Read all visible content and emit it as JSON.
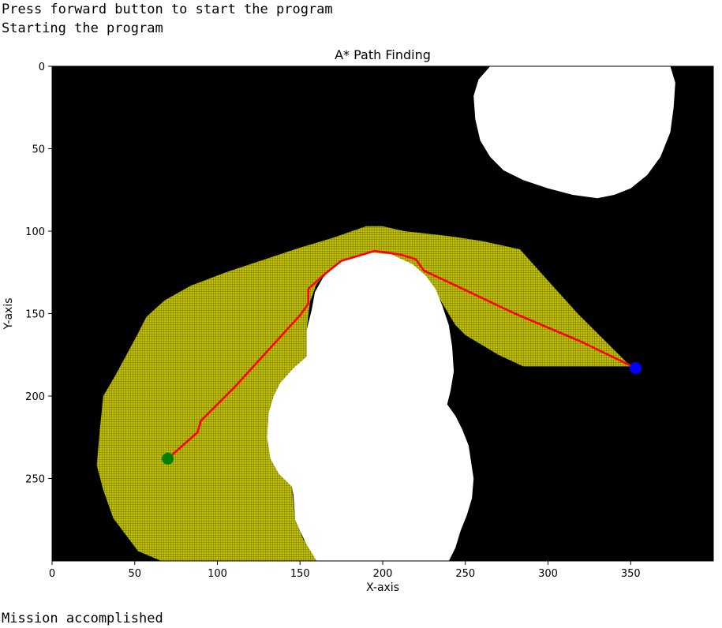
{
  "console": {
    "line1": "Press forward button to start the program",
    "line2": "Starting the program",
    "line3": "Mission accomplished"
  },
  "chart_data": {
    "type": "image-plot",
    "title": "A* Path Finding",
    "xlabel": "X-axis",
    "ylabel": "Y-axis",
    "xlim": [
      0,
      400
    ],
    "ylim": [
      300,
      0
    ],
    "xticks": [
      0,
      50,
      100,
      150,
      200,
      250,
      300,
      350
    ],
    "yticks": [
      0,
      50,
      100,
      150,
      200,
      250
    ],
    "background_color": "#000000",
    "obstacle_color": "#ffffff",
    "explored_color": "#c2c200",
    "path_color": "#ff0000",
    "start_color": "#008000",
    "goal_color": "#0000ff",
    "obstacles": [
      [
        [
          265,
          0
        ],
        [
          374,
          0
        ],
        [
          377,
          10
        ],
        [
          376,
          25
        ],
        [
          374,
          40
        ],
        [
          368,
          55
        ],
        [
          360,
          66
        ],
        [
          350,
          74
        ],
        [
          340,
          78
        ],
        [
          330,
          80
        ],
        [
          315,
          78
        ],
        [
          300,
          74
        ],
        [
          285,
          69
        ],
        [
          273,
          63
        ],
        [
          265,
          55
        ],
        [
          259,
          45
        ],
        [
          256,
          32
        ],
        [
          255,
          18
        ],
        [
          258,
          8
        ]
      ],
      [
        [
          193,
          113
        ],
        [
          205,
          114
        ],
        [
          218,
          120
        ],
        [
          226,
          127
        ],
        [
          232,
          135
        ],
        [
          236,
          145
        ],
        [
          240,
          157
        ],
        [
          242,
          170
        ],
        [
          243,
          185
        ],
        [
          241,
          197
        ],
        [
          239,
          205
        ],
        [
          244,
          212
        ],
        [
          248,
          220
        ],
        [
          252,
          230
        ],
        [
          255,
          250
        ],
        [
          254,
          262
        ],
        [
          251,
          272
        ],
        [
          247,
          282
        ],
        [
          244,
          292
        ],
        [
          240,
          300
        ],
        [
          160,
          300
        ],
        [
          154,
          290
        ],
        [
          150,
          282
        ],
        [
          147,
          275
        ],
        [
          146,
          260
        ],
        [
          145,
          255
        ],
        [
          137,
          247
        ],
        [
          132,
          238
        ],
        [
          130,
          225
        ],
        [
          131,
          210
        ],
        [
          134,
          200
        ],
        [
          138,
          192
        ],
        [
          146,
          183
        ],
        [
          154,
          176
        ],
        [
          154,
          160
        ],
        [
          157,
          148
        ],
        [
          159,
          137
        ],
        [
          164,
          128
        ],
        [
          171,
          121
        ],
        [
          180,
          116
        ]
      ]
    ],
    "explored": [
      [
        [
          66,
          300
        ],
        [
          52,
          294
        ],
        [
          37,
          274
        ],
        [
          31,
          257
        ],
        [
          27,
          242
        ],
        [
          29,
          219
        ],
        [
          31,
          200
        ],
        [
          38,
          188
        ],
        [
          45,
          175
        ],
        [
          52,
          162
        ],
        [
          57,
          152
        ],
        [
          68,
          142
        ],
        [
          84,
          133
        ],
        [
          105,
          125
        ],
        [
          126,
          118
        ],
        [
          150,
          110
        ],
        [
          170,
          104
        ],
        [
          190,
          97
        ],
        [
          200,
          97
        ],
        [
          213,
          100
        ],
        [
          240,
          103
        ],
        [
          260,
          106
        ],
        [
          283,
          111
        ],
        [
          300,
          130
        ],
        [
          318,
          150
        ],
        [
          334,
          166
        ],
        [
          350,
          182
        ],
        [
          285,
          182
        ],
        [
          270,
          175
        ],
        [
          250,
          163
        ],
        [
          244,
          157
        ],
        [
          232,
          137
        ],
        [
          220,
          122
        ],
        [
          206,
          115
        ],
        [
          193,
          113
        ],
        [
          180,
          116
        ],
        [
          168,
          123
        ],
        [
          160,
          132
        ],
        [
          156,
          143
        ],
        [
          154,
          160
        ],
        [
          154,
          176
        ],
        [
          146,
          183
        ],
        [
          138,
          192
        ],
        [
          134,
          200
        ],
        [
          131,
          210
        ],
        [
          130,
          225
        ],
        [
          132,
          238
        ],
        [
          137,
          247
        ],
        [
          145,
          255
        ],
        [
          147,
          275
        ],
        [
          152,
          287
        ],
        [
          157,
          293
        ],
        [
          160,
          300
        ]
      ]
    ],
    "path": [
      [
        70,
        238
      ],
      [
        88,
        222
      ],
      [
        90,
        215
      ],
      [
        110,
        195
      ],
      [
        130,
        173
      ],
      [
        150,
        151
      ],
      [
        155,
        144
      ],
      [
        155,
        135
      ],
      [
        165,
        126
      ],
      [
        175,
        118
      ],
      [
        185,
        115
      ],
      [
        195,
        112
      ],
      [
        210,
        114
      ],
      [
        220,
        117
      ],
      [
        225,
        124
      ],
      [
        240,
        131
      ],
      [
        280,
        150
      ],
      [
        320,
        167
      ],
      [
        353,
        183
      ]
    ],
    "start": [
      70,
      238
    ],
    "goal": [
      353,
      183
    ]
  }
}
